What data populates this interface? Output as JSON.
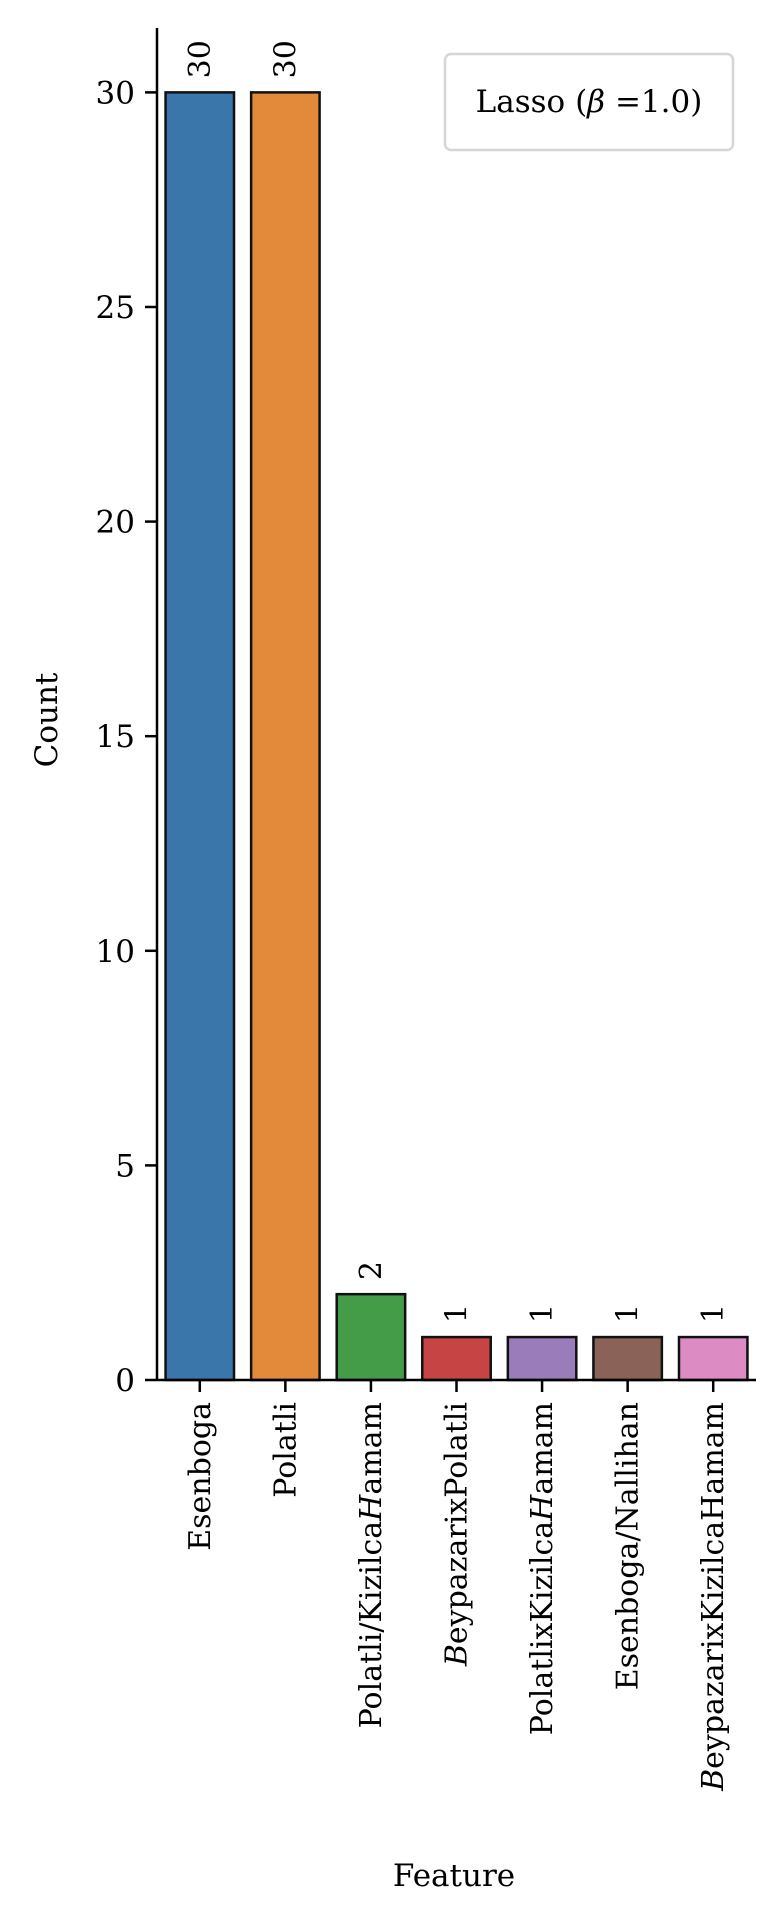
{
  "chart_data": {
    "type": "bar",
    "xlabel": "Feature",
    "ylabel": "Count",
    "categories": [
      {
        "label": "Esenboga",
        "italic_prefix": ""
      },
      {
        "label": "Polatli",
        "italic_prefix": ""
      },
      {
        "label": "Polatli/KizilcaHamam",
        "italic_prefix": ""
      },
      {
        "label": "eypazarixPolatli",
        "italic_prefix": "B"
      },
      {
        "label": "PolatlixKizilcaHamam",
        "italic_prefix": ""
      },
      {
        "label": "Esenboga/Nallihan",
        "italic_prefix": ""
      },
      {
        "label": "eypazarixKizilcaHamam",
        "italic_prefix": "B"
      }
    ],
    "category_rich": {
      "2": [
        {
          "t": "Polatli/Kizilca",
          "i": false
        },
        {
          "t": "H",
          "i": true
        },
        {
          "t": "amam",
          "i": false
        }
      ],
      "4": [
        {
          "t": "PolatlixKizilca",
          "i": false
        },
        {
          "t": "H",
          "i": true
        },
        {
          "t": "amam",
          "i": false
        }
      ]
    },
    "values": [
      30,
      30,
      2,
      1,
      1,
      1,
      1
    ],
    "data_labels": [
      "30",
      "30",
      "2",
      "1",
      "1",
      "1",
      "1"
    ],
    "colors": [
      "#3b76aa",
      "#e2893a",
      "#449b48",
      "#c64544",
      "#9a7cbb",
      "#8a6258",
      "#dc8cc3"
    ],
    "ylim": [
      0,
      31.5
    ],
    "yticks": [
      0,
      5,
      10,
      15,
      20,
      25,
      30
    ],
    "legend": {
      "text_before": "Lasso (",
      "symbol": "β",
      "text_after": " =1.0)",
      "position": "top-right"
    },
    "grid": false
  }
}
